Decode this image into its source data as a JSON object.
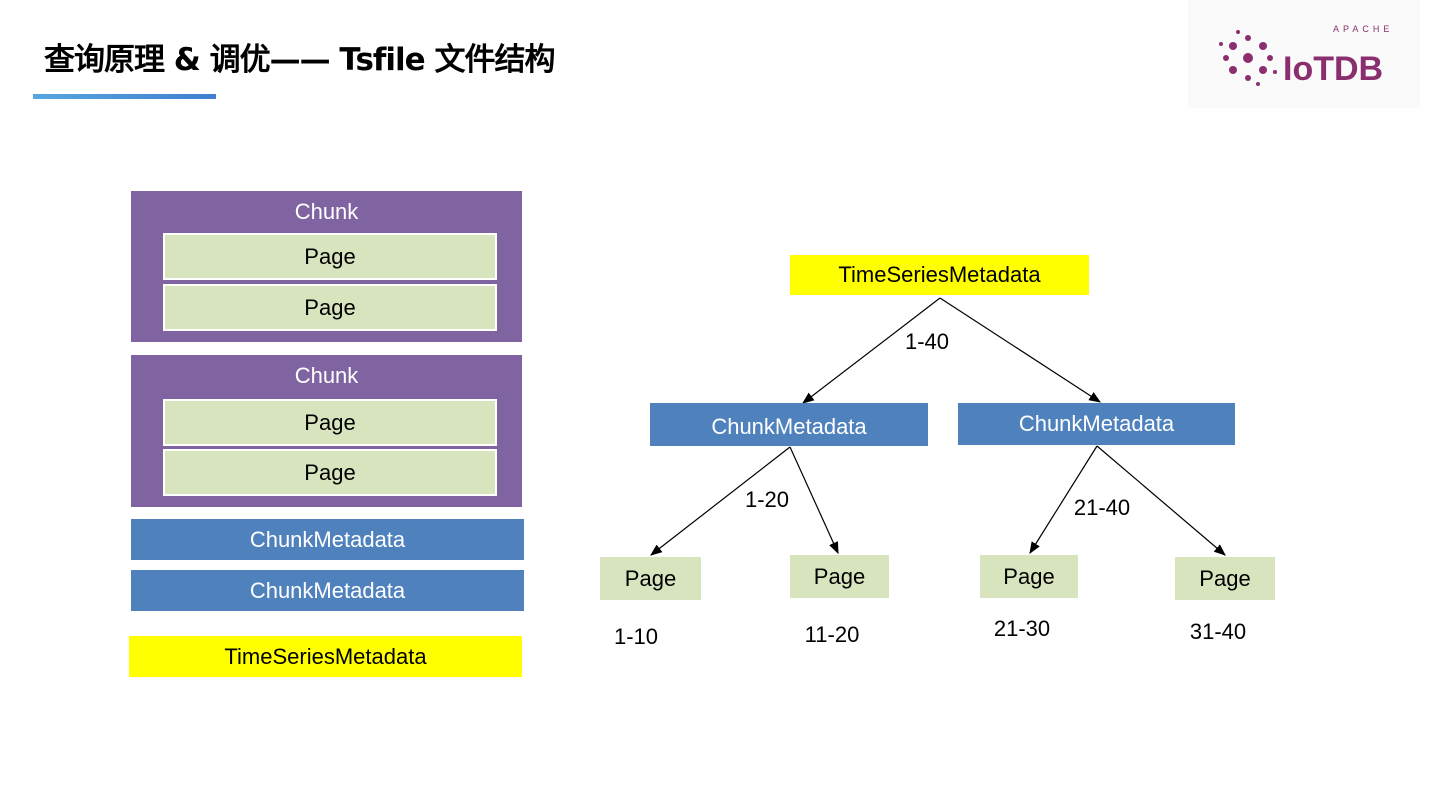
{
  "header": {
    "title": "查询原理 & 调优—— Tsfile 文件结构",
    "logo_text": "APACHE IoTDB"
  },
  "colors": {
    "chunk": "#8064a2",
    "page": "#d7e4bd",
    "chunk_metadata": "#4f81bd",
    "timeseries_metadata": "#ffff00",
    "accent": "#4a90d9"
  },
  "file_layout": {
    "chunks": [
      {
        "label": "Chunk",
        "pages": [
          "Page",
          "Page"
        ]
      },
      {
        "label": "Chunk",
        "pages": [
          "Page",
          "Page"
        ]
      }
    ],
    "chunk_metadata": [
      "ChunkMetadata",
      "ChunkMetadata"
    ],
    "timeseries_metadata": "TimeSeriesMetadata"
  },
  "tree": {
    "root": "TimeSeriesMetadata",
    "root_range": "1-40",
    "chunk_metadata": [
      {
        "label": "ChunkMetadata",
        "range": "1-20",
        "pages": [
          {
            "label": "Page",
            "range": "1-10"
          },
          {
            "label": "Page",
            "range": "11-20"
          }
        ]
      },
      {
        "label": "ChunkMetadata",
        "range": "21-40",
        "pages": [
          {
            "label": "Page",
            "range": "21-30"
          },
          {
            "label": "Page",
            "range": "31-40"
          }
        ]
      }
    ]
  }
}
